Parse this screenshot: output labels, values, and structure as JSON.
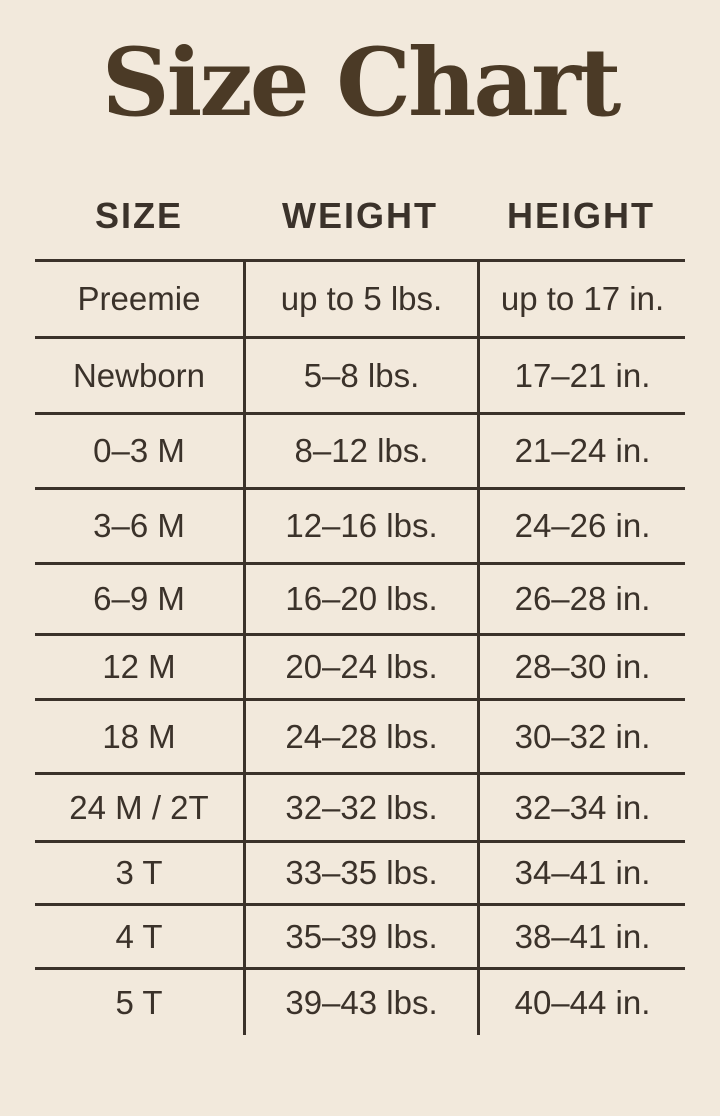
{
  "page": {
    "title": "Size Chart"
  },
  "table": {
    "headers": {
      "size": "SIZE",
      "weight": "WEIGHT",
      "height": "HEIGHT"
    },
    "rows": [
      {
        "size": "Preemie",
        "weight": "up to 5 lbs.",
        "height": "up to 17 in."
      },
      {
        "size": "Newborn",
        "weight": "5–8 lbs.",
        "height": "17–21 in."
      },
      {
        "size": "0–3 M",
        "weight": "8–12 lbs.",
        "height": "21–24 in."
      },
      {
        "size": "3–6 M",
        "weight": "12–16 lbs.",
        "height": "24–26 in."
      },
      {
        "size": "6–9 M",
        "weight": "16–20 lbs.",
        "height": "26–28 in."
      },
      {
        "size": "12 M",
        "weight": "20–24 lbs.",
        "height": "28–30 in."
      },
      {
        "size": "18 M",
        "weight": "24–28 lbs.",
        "height": "30–32 in."
      },
      {
        "size": "24 M / 2T",
        "weight": "32–32 lbs.",
        "height": "32–34 in."
      },
      {
        "size": "3 T",
        "weight": "33–35 lbs.",
        "height": "34–41 in."
      },
      {
        "size": "4 T",
        "weight": "35–39 lbs.",
        "height": "38–41 in."
      },
      {
        "size": "5 T",
        "weight": "39–43 lbs.",
        "height": "40–44 in."
      }
    ]
  },
  "colors": {
    "background": "#f2e9dc",
    "text": "#3b322a",
    "grid_line": "#3b322a",
    "title": "#4b3a26"
  },
  "chart_data": {
    "type": "table",
    "title": "Size Chart",
    "columns": [
      "SIZE",
      "WEIGHT",
      "HEIGHT"
    ],
    "rows": [
      [
        "Preemie",
        "up to 5 lbs.",
        "up to 17 in."
      ],
      [
        "Newborn",
        "5–8 lbs.",
        "17–21 in."
      ],
      [
        "0–3 M",
        "8–12 lbs.",
        "21–24 in."
      ],
      [
        "3–6 M",
        "12–16 lbs.",
        "24–26 in."
      ],
      [
        "6–9 M",
        "16–20 lbs.",
        "26–28 in."
      ],
      [
        "12 M",
        "20–24 lbs.",
        "28–30 in."
      ],
      [
        "18 M",
        "24–28 lbs.",
        "30–32 in."
      ],
      [
        "24 M / 2T",
        "32–32 lbs.",
        "32–34 in."
      ],
      [
        "3 T",
        "33–35 lbs.",
        "34–41 in."
      ],
      [
        "4 T",
        "35–39 lbs.",
        "38–41 in."
      ],
      [
        "5 T",
        "39–43 lbs.",
        "40–44 in."
      ]
    ],
    "layout": {
      "title_position": "top-center",
      "column_dividers": true,
      "row_dividers": true,
      "outer_bottom_border": false
    }
  }
}
